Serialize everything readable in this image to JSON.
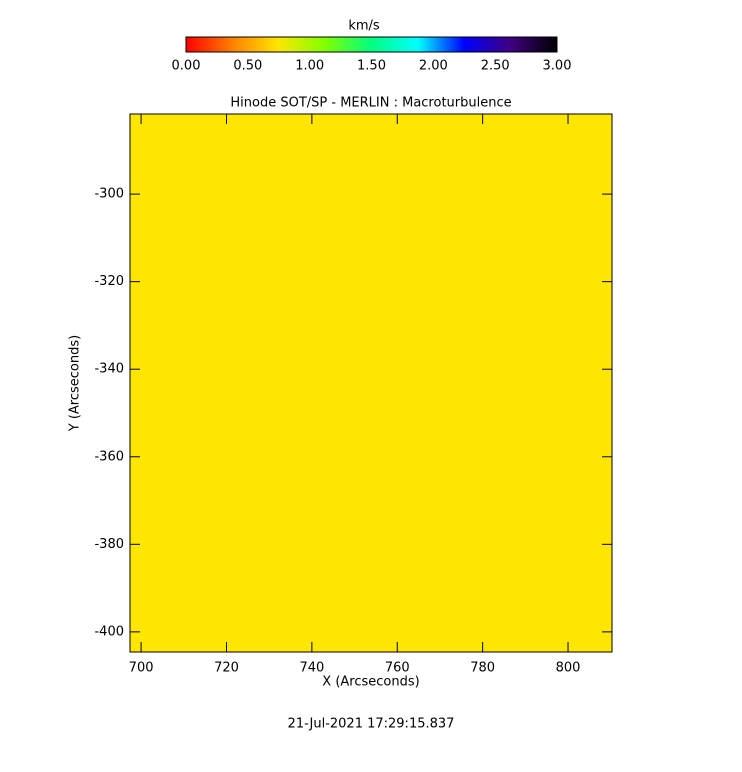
{
  "chart_data": {
    "type": "heatmap",
    "title": "Hinode SOT/SP - MERLIN : Macroturbulence",
    "xlabel": "X (Arcseconds)",
    "ylabel": "Y (Arcseconds)",
    "footer": "21-Jul-2021 17:29:15.837",
    "xlim": [
      697.4,
      810.3
    ],
    "ylim": [
      -404.6,
      -281.7
    ],
    "xticks": [
      700,
      720,
      740,
      760,
      780,
      800
    ],
    "yticks": [
      -300,
      -320,
      -340,
      -360,
      -380,
      -400
    ],
    "values": [
      [
        0.75
      ]
    ],
    "colorbar": {
      "label": "km/s",
      "lim": [
        0,
        3
      ],
      "ticks": [
        {
          "value": 0,
          "label": "0.00"
        },
        {
          "value": 0.5,
          "label": "0.50"
        },
        {
          "value": 1,
          "label": "1.00"
        },
        {
          "value": 1.5,
          "label": "1.50"
        },
        {
          "value": 2,
          "label": "2.00"
        },
        {
          "value": 2.5,
          "label": "2.50"
        },
        {
          "value": 3,
          "label": "3.00"
        }
      ],
      "colors": [
        "#ff0000",
        "#ff8000",
        "#ffe600",
        "#80ff00",
        "#00ff80",
        "#00ffff",
        "#0000ff",
        "#400080",
        "#000000"
      ]
    }
  }
}
